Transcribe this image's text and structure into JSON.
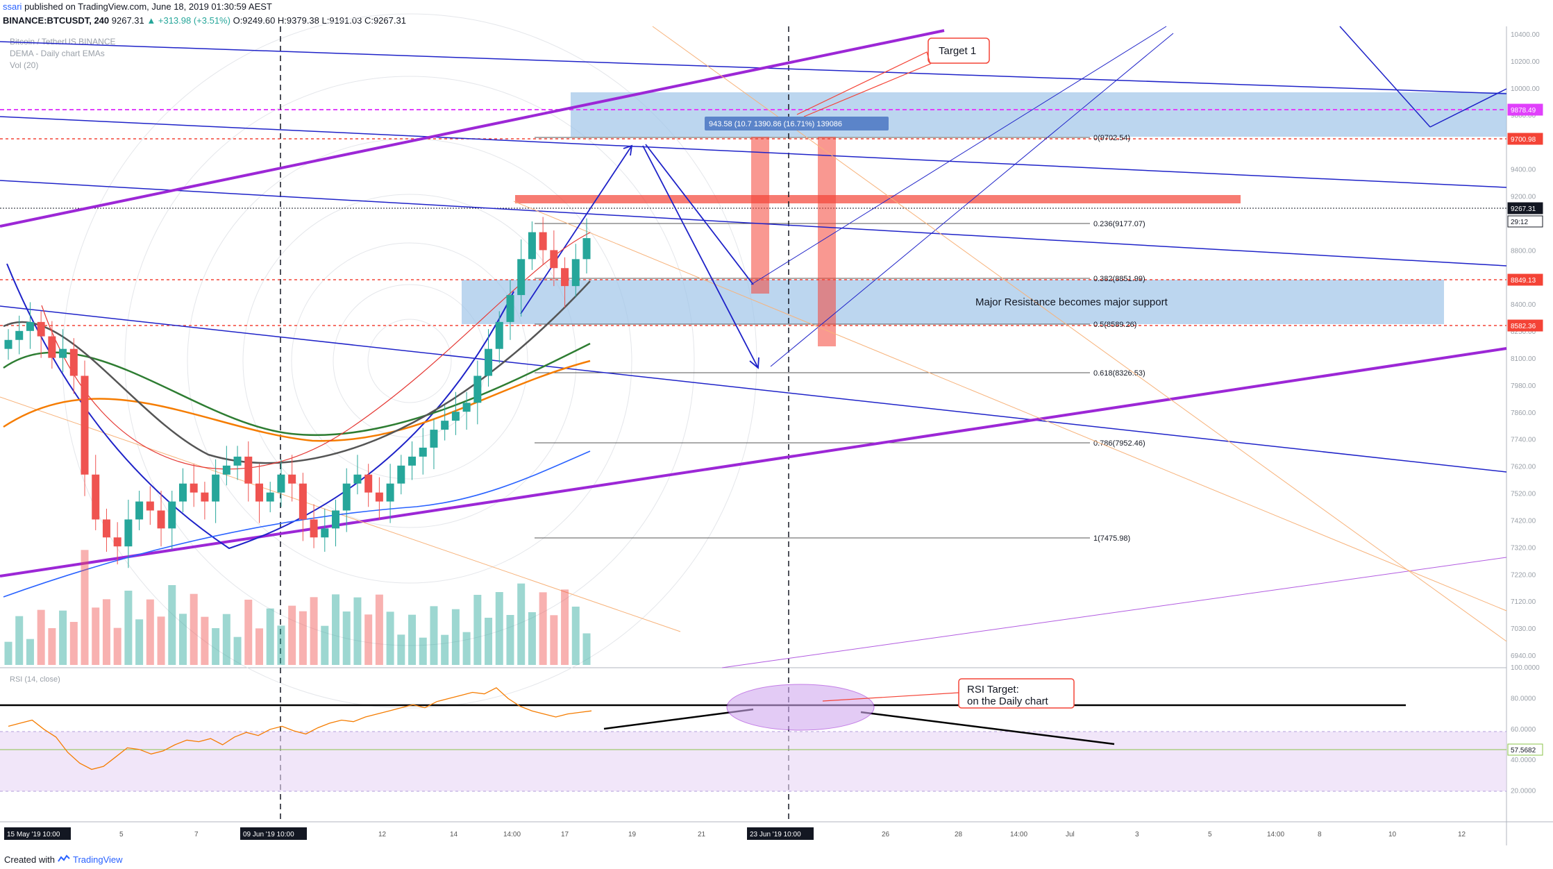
{
  "header": {
    "user": "ssari",
    "published": "published on TradingView.com, June 18, 2019 01:30:59 AEST",
    "symbol_line": "BINANCE:BTCUSDT, 240",
    "last": "9267.31",
    "change": "▲ +313.98 (+3.51%)",
    "ohlc": "O:9249.60  H:9379.38  L:9191.03  C:9267.31"
  },
  "legend": {
    "line1": "Bitcoin / TetherUS BINANCE",
    "line2": "DEMA - Daily chart EMAs",
    "line3": "Vol (20)"
  },
  "footer": {
    "created_with": "Created with",
    "brand": "TradingView"
  },
  "colors": {
    "up": "#26a69a",
    "down": "#ef5350",
    "blue_line": "#1e22c8",
    "purple": "#9c27d6",
    "zone": "#9fc5e8",
    "resist": "#f44336"
  },
  "chart_data": {
    "type": "candlestick",
    "title": "BINANCE:BTCUSDT, 240",
    "price_axis_ticks": [
      "10400.00",
      "10200.00",
      "10000.00",
      "9800.00",
      "9600.00",
      "9400.00",
      "9200.00",
      "9000.00",
      "8800.00",
      "8600.00",
      "8400.00",
      "8250.00",
      "8100.00",
      "7980.00",
      "7860.00",
      "7740.00",
      "7620.00",
      "7520.00",
      "7420.00",
      "7320.00",
      "7220.00",
      "7120.00",
      "7030.00",
      "6940.00"
    ],
    "price_labels": [
      {
        "value": "9878.49",
        "color": "#e040fb"
      },
      {
        "value": "9700.98",
        "color": "#f44336"
      },
      {
        "value": "9267.31",
        "color": "#131722"
      },
      {
        "value": "29:12",
        "color": "#131722"
      },
      {
        "value": "8849.13",
        "color": "#f44336"
      },
      {
        "value": "8582.36",
        "color": "#f44336"
      }
    ],
    "fib_levels": [
      {
        "label": "0(9702.54)",
        "price": 9702.54
      },
      {
        "label": "0.236(9177.07)",
        "price": 9177.07
      },
      {
        "label": "0.382(8851.99)",
        "price": 8851.99
      },
      {
        "label": "0.5(8589.26)",
        "price": 8589.26
      },
      {
        "label": "0.618(8326.53)",
        "price": 8326.53
      },
      {
        "label": "0.786(7952.46)",
        "price": 7952.46
      },
      {
        "label": "1(7475.98)",
        "price": 7475.98
      }
    ],
    "annotations": {
      "target": "Target 1",
      "measure": "943.58 (10.7   1390.86 (16.71%) 139086",
      "zone_text": "Major Resistance becomes major support",
      "rsi_target_line1": "RSI Target:",
      "rsi_target_line2": "on the Daily chart"
    },
    "rsi": {
      "label": "RSI (14, close)",
      "last": "57.5682",
      "axis_ticks": [
        "100.0000",
        "80.0000",
        "60.0000",
        "40.0000",
        "20.0000"
      ]
    },
    "time_axis": [
      "15 May '19  10:00",
      "5",
      "7",
      "09 Jun '19  10:00",
      "12",
      "14",
      "14:00",
      "17",
      "19",
      "21",
      "23 Jun '19  10:00",
      "26",
      "28",
      "14:00",
      "Jul",
      "3",
      "5",
      "14:00",
      "8",
      "10",
      "12"
    ],
    "candles_close_approx": [
      8700,
      8750,
      8800,
      8720,
      8600,
      8650,
      8500,
      7950,
      7700,
      7600,
      7550,
      7700,
      7800,
      7750,
      7650,
      7800,
      7900,
      7850,
      7800,
      7950,
      8000,
      8050,
      7900,
      7800,
      7850,
      7950,
      7900,
      7700,
      7600,
      7650,
      7750,
      7900,
      7950,
      7850,
      7800,
      7900,
      8000,
      8050,
      8100,
      8200,
      8250,
      8300,
      8350,
      8500,
      8650,
      8800,
      8950,
      9150,
      9300,
      9200,
      9100,
      9000,
      9150,
      9267
    ]
  }
}
